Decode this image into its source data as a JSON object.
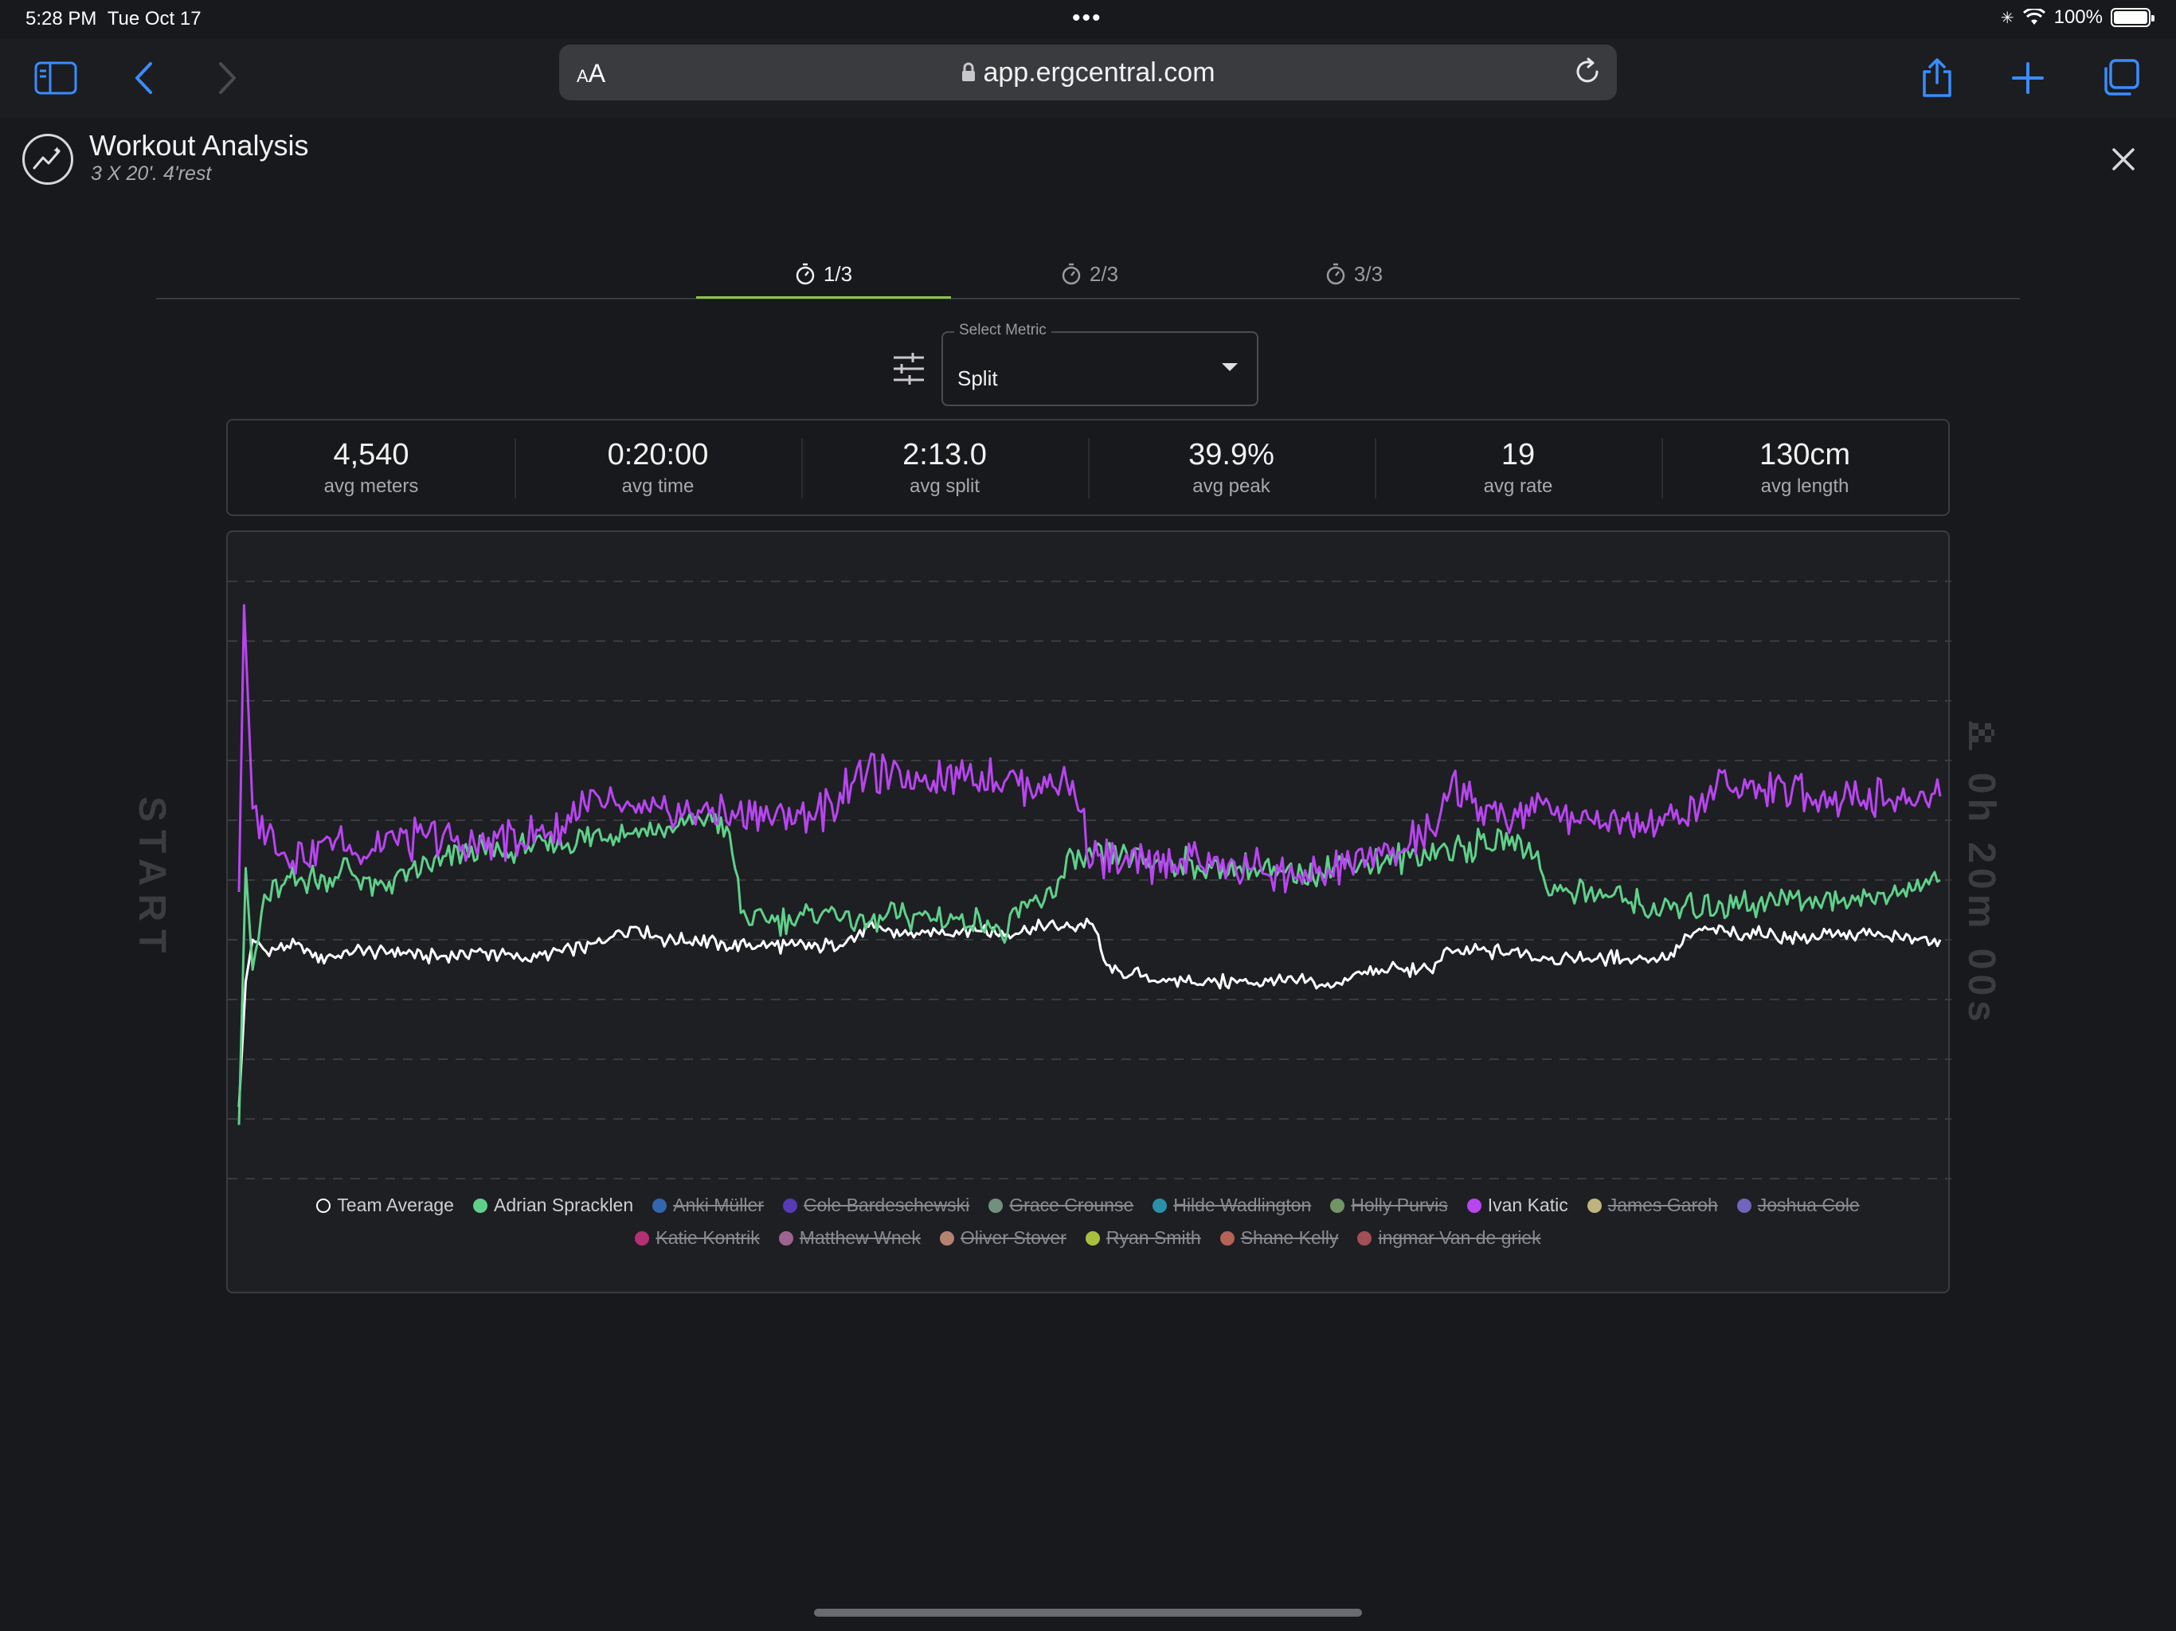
{
  "status_bar": {
    "time": "5:28 PM",
    "date": "Tue Oct 17",
    "battery": "100%",
    "battery_level": 1.0
  },
  "browser": {
    "text_size_label_small": "A",
    "text_size_label_large": "A",
    "url": "app.ergcentral.com",
    "icons": [
      "sidebar-icon",
      "back-chevron-icon",
      "forward-chevron-icon",
      "lock-icon",
      "reload-icon",
      "share-icon",
      "plus-icon",
      "tabs-icon"
    ]
  },
  "header": {
    "title": "Workout Analysis",
    "subtitle": "3 X 20'. 4'rest",
    "icon": "analytics-chart-icon",
    "close_icon": "close-icon"
  },
  "tabs": [
    {
      "label": "1/3",
      "active": true,
      "icon": "stopwatch-icon"
    },
    {
      "label": "2/3",
      "active": false,
      "icon": "stopwatch-icon"
    },
    {
      "label": "3/3",
      "active": false,
      "icon": "stopwatch-icon"
    }
  ],
  "metric_select": {
    "label": "Select Metric",
    "value": "Split"
  },
  "stats": [
    {
      "value": "4,540",
      "label": "avg meters"
    },
    {
      "value": "0:20:00",
      "label": "avg time"
    },
    {
      "value": "2:13.0",
      "label": "avg split"
    },
    {
      "value": "39.9%",
      "label": "avg peak"
    },
    {
      "value": "19",
      "label": "avg rate"
    },
    {
      "value": "130cm",
      "label": "avg length"
    }
  ],
  "chart_overlay": {
    "start": "START",
    "finish": "0h 20m 00s"
  },
  "chart_data": {
    "type": "line",
    "title": "",
    "xlabel": "",
    "ylabel": "",
    "grid": true,
    "legend": "bottom",
    "xlim": [
      0,
      100
    ],
    "ylim": [
      0,
      100
    ],
    "series": [
      {
        "name": "Team Average",
        "color": "#ffffff",
        "visible": true,
        "values": [
          [
            0,
            12
          ],
          [
            0.4,
            33
          ],
          [
            0.8,
            40
          ],
          [
            1.6,
            38
          ],
          [
            3,
            39
          ],
          [
            5,
            37
          ],
          [
            7,
            38
          ],
          [
            9,
            38
          ],
          [
            12,
            37
          ],
          [
            14,
            38
          ],
          [
            17,
            37
          ],
          [
            19,
            38
          ],
          [
            21,
            39
          ],
          [
            22,
            41
          ],
          [
            23.5,
            42
          ],
          [
            25,
            40
          ],
          [
            27,
            40
          ],
          [
            29,
            39
          ],
          [
            31,
            39
          ],
          [
            33,
            39
          ],
          [
            35,
            39
          ],
          [
            36,
            40
          ],
          [
            37,
            42
          ],
          [
            39,
            41
          ],
          [
            41,
            41
          ],
          [
            43,
            42
          ],
          [
            45,
            41
          ],
          [
            47,
            42
          ],
          [
            49,
            42
          ],
          [
            50,
            43
          ],
          [
            50.5,
            40
          ],
          [
            51,
            35
          ],
          [
            53,
            34
          ],
          [
            55,
            33
          ],
          [
            57,
            33
          ],
          [
            59,
            33
          ],
          [
            61,
            33
          ],
          [
            63,
            33
          ],
          [
            64,
            32
          ],
          [
            65.5,
            34
          ],
          [
            67,
            35
          ],
          [
            69,
            35
          ],
          [
            70,
            35
          ],
          [
            71,
            38
          ],
          [
            73,
            38
          ],
          [
            75,
            38
          ],
          [
            77,
            37
          ],
          [
            79,
            37
          ],
          [
            81,
            37
          ],
          [
            83,
            37
          ],
          [
            84,
            37
          ],
          [
            85,
            40
          ],
          [
            86,
            42
          ],
          [
            88,
            41
          ],
          [
            90,
            41
          ],
          [
            92,
            40
          ],
          [
            94,
            41
          ],
          [
            96,
            41
          ],
          [
            98,
            40
          ],
          [
            100,
            40
          ]
        ]
      },
      {
        "name": "Adrian Spracklen",
        "color": "#5fd08a",
        "visible": true,
        "values": [
          [
            0,
            9
          ],
          [
            0.4,
            52
          ],
          [
            0.8,
            35
          ],
          [
            1.5,
            47
          ],
          [
            3,
            50
          ],
          [
            5,
            50
          ],
          [
            6,
            52
          ],
          [
            8,
            49
          ],
          [
            10,
            51
          ],
          [
            12,
            53
          ],
          [
            14,
            55
          ],
          [
            16,
            55
          ],
          [
            18,
            56
          ],
          [
            20,
            57
          ],
          [
            22,
            58
          ],
          [
            24,
            58
          ],
          [
            26,
            59
          ],
          [
            27,
            60
          ],
          [
            28,
            61
          ],
          [
            28.5,
            58
          ],
          [
            29,
            55
          ],
          [
            29.5,
            45
          ],
          [
            30,
            43
          ],
          [
            31,
            43
          ],
          [
            33,
            44
          ],
          [
            35,
            45
          ],
          [
            36,
            43
          ],
          [
            37,
            43
          ],
          [
            39,
            44
          ],
          [
            41,
            44
          ],
          [
            43,
            43
          ],
          [
            44,
            43
          ],
          [
            45,
            40
          ],
          [
            46,
            45
          ],
          [
            47,
            46
          ],
          [
            48,
            49
          ],
          [
            49,
            53
          ],
          [
            51,
            54
          ],
          [
            53,
            53
          ],
          [
            55,
            53
          ],
          [
            57,
            52
          ],
          [
            59,
            52
          ],
          [
            61,
            51
          ],
          [
            63,
            51
          ],
          [
            65,
            53
          ],
          [
            67,
            53
          ],
          [
            69,
            54
          ],
          [
            71,
            55
          ],
          [
            73,
            56
          ],
          [
            74,
            56
          ],
          [
            75,
            57
          ],
          [
            76,
            55
          ],
          [
            77,
            49
          ],
          [
            79,
            48
          ],
          [
            81,
            47
          ],
          [
            83,
            45
          ],
          [
            85,
            45
          ],
          [
            87,
            46
          ],
          [
            89,
            46
          ],
          [
            91,
            47
          ],
          [
            93,
            47
          ],
          [
            95,
            47
          ],
          [
            97,
            48
          ],
          [
            98,
            48
          ],
          [
            100,
            50
          ]
        ]
      },
      {
        "name": "Anki Müller",
        "color": "#3a7fe0",
        "visible": false,
        "values": []
      },
      {
        "name": "Cole Bardeschewski",
        "color": "#6a45e8",
        "visible": false,
        "values": []
      },
      {
        "name": "Grace Crounse",
        "color": "#8fb7a0",
        "visible": false,
        "values": []
      },
      {
        "name": "Hilde Wadlington",
        "color": "#2fb8d8",
        "visible": false,
        "values": []
      },
      {
        "name": "Holly Purvis",
        "color": "#8fbf7a",
        "visible": false,
        "values": []
      },
      {
        "name": "Ivan Katic",
        "color": "#b845f0",
        "visible": true,
        "values": [
          [
            0,
            48
          ],
          [
            0.3,
            96
          ],
          [
            0.8,
            62
          ],
          [
            1.2,
            60
          ],
          [
            2,
            56
          ],
          [
            3,
            54
          ],
          [
            5,
            56
          ],
          [
            7,
            55
          ],
          [
            9,
            57
          ],
          [
            11,
            57
          ],
          [
            13,
            56
          ],
          [
            15,
            57
          ],
          [
            17,
            57
          ],
          [
            19,
            58
          ],
          [
            20,
            63
          ],
          [
            22,
            62
          ],
          [
            24,
            61
          ],
          [
            26,
            61
          ],
          [
            28,
            61
          ],
          [
            30,
            61
          ],
          [
            32,
            61
          ],
          [
            34,
            61
          ],
          [
            35,
            63
          ],
          [
            36,
            67
          ],
          [
            37.5,
            68
          ],
          [
            39,
            66
          ],
          [
            41,
            68
          ],
          [
            43,
            67
          ],
          [
            45,
            67
          ],
          [
            47,
            66
          ],
          [
            48.5,
            67
          ],
          [
            49.5,
            61
          ],
          [
            50,
            55
          ],
          [
            51,
            53
          ],
          [
            52,
            52
          ],
          [
            54,
            53
          ],
          [
            56,
            54
          ],
          [
            58,
            52
          ],
          [
            60,
            52
          ],
          [
            62,
            51
          ],
          [
            63.5,
            50
          ],
          [
            65,
            53
          ],
          [
            67,
            54
          ],
          [
            69,
            56
          ],
          [
            70.5,
            59
          ],
          [
            71.5,
            66
          ],
          [
            72.5,
            65
          ],
          [
            73,
            61
          ],
          [
            75,
            61
          ],
          [
            77,
            62
          ],
          [
            79,
            61
          ],
          [
            81,
            60
          ],
          [
            83,
            60
          ],
          [
            85,
            61
          ],
          [
            86,
            62
          ],
          [
            87,
            68
          ],
          [
            88,
            65
          ],
          [
            90,
            65
          ],
          [
            92,
            64
          ],
          [
            94,
            64
          ],
          [
            96,
            64
          ],
          [
            98,
            63
          ],
          [
            100,
            64
          ]
        ]
      },
      {
        "name": "James Garoh",
        "color": "#f5e6a0",
        "visible": false,
        "values": []
      },
      {
        "name": "Joshua Cole",
        "color": "#8c7cf0",
        "visible": false,
        "values": []
      },
      {
        "name": "Katie Kontrik",
        "color": "#e8358f",
        "visible": false,
        "values": []
      },
      {
        "name": "Matthew Wnek",
        "color": "#c87cb8",
        "visible": false,
        "values": []
      },
      {
        "name": "Oliver Stover",
        "color": "#e8a58a",
        "visible": false,
        "values": []
      },
      {
        "name": "Ryan Smith",
        "color": "#d8f54a",
        "visible": false,
        "values": []
      },
      {
        "name": "Shane Kelly",
        "color": "#e87a6a",
        "visible": false,
        "values": []
      },
      {
        "name": "ingmar Van de griek",
        "color": "#d0606a",
        "visible": false,
        "values": []
      }
    ]
  }
}
